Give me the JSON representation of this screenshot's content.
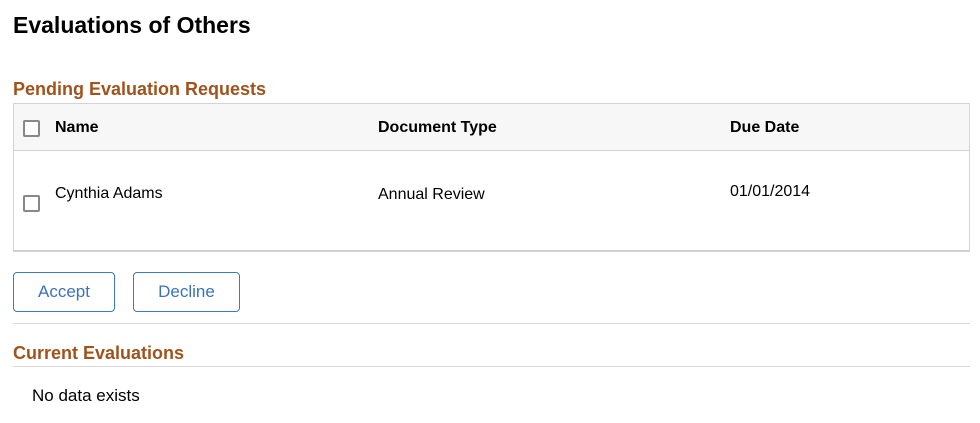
{
  "page": {
    "title": "Evaluations of Others"
  },
  "pending": {
    "heading": "Pending Evaluation Requests",
    "columns": [
      "Name",
      "Document Type",
      "Due Date"
    ],
    "rows": [
      {
        "name": "Cynthia Adams",
        "document_type": "Annual Review",
        "due_date": "01/01/2014",
        "selected": false
      }
    ],
    "select_all": false,
    "accept_label": "Accept",
    "decline_label": "Decline"
  },
  "current": {
    "heading": "Current Evaluations",
    "empty_text": "No data exists"
  },
  "colors": {
    "section_heading": "#a0531c",
    "button_text": "#3b73b9"
  }
}
